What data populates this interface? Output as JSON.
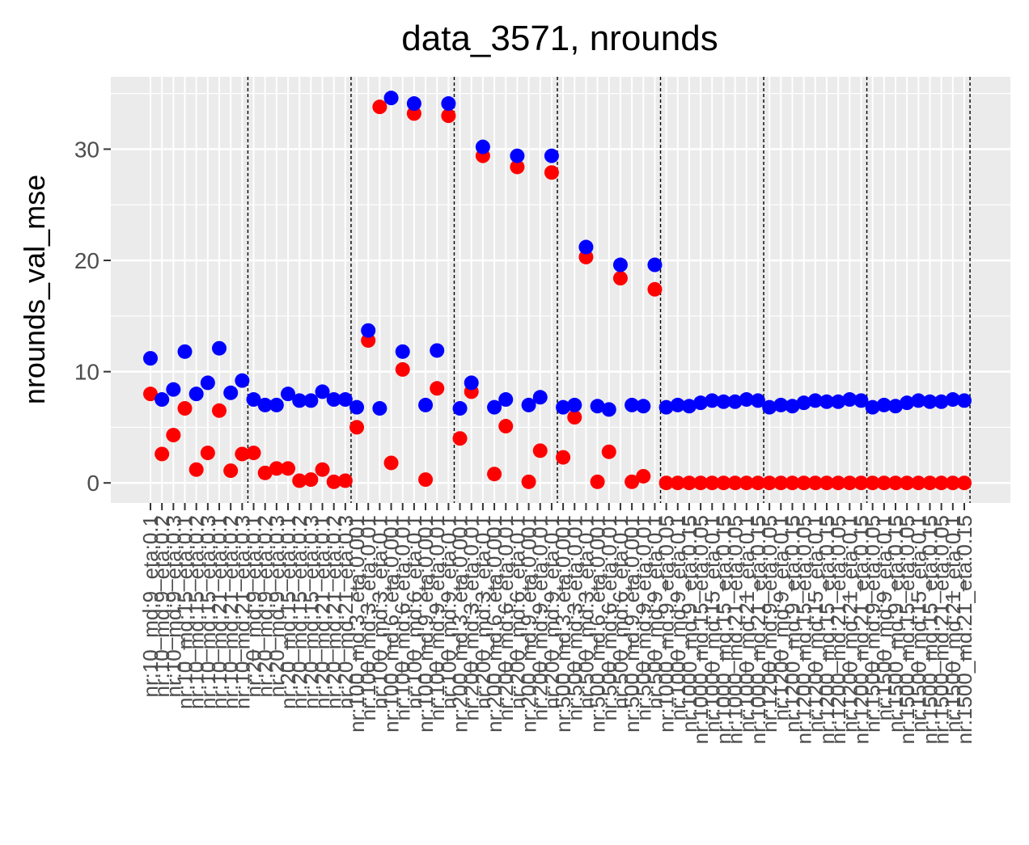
{
  "chart_data": {
    "type": "scatter",
    "title": "data_3571, nrounds",
    "xlabel": "",
    "ylabel": "nrounds_val_mse",
    "ylim": [
      -1.8,
      36.5
    ],
    "y_ticks": [
      0,
      10,
      20,
      30
    ],
    "grid": true,
    "legend": "none",
    "colors": {
      "panel_bg": "#ebebeb",
      "grid": "#ffffff",
      "blue_series": "#0000ff",
      "red_series": "#ff0000",
      "group_line": "#000000",
      "tick_text": "#4d4d4d"
    },
    "group_boundaries_after_index": [
      8,
      17,
      26,
      35,
      44,
      53,
      62,
      71,
      80
    ],
    "categories": [
      "nr:10_md:9_eta:0.1",
      "nr:10_md:9_eta:0.2",
      "nr:10_md:9_eta:0.3",
      "nr:10_md:15_eta:0.1",
      "nr:10_md:15_eta:0.2",
      "nr:10_md:15_eta:0.3",
      "nr:10_md:21_eta:0.1",
      "nr:10_md:21_eta:0.2",
      "nr:10_md:21_eta:0.3",
      "nr:20_md:9_eta:0.1",
      "nr:20_md:9_eta:0.2",
      "nr:20_md:9_eta:0.3",
      "nr:20_md:15_eta:0.1",
      "nr:20_md:15_eta:0.2",
      "nr:20_md:15_eta:0.3",
      "nr:20_md:21_eta:0.1",
      "nr:20_md:21_eta:0.2",
      "nr:20_md:21_eta:0.3",
      "nr:100_md:3_eta:0.001",
      "nr:100_md:3_eta:0.01",
      "nr:100_md:3_eta:0.1",
      "nr:100_md:6_eta:0.001",
      "nr:100_md:6_eta:0.01",
      "nr:100_md:6_eta:0.1",
      "nr:100_md:9_eta:0.001",
      "nr:100_md:9_eta:0.01",
      "nr:100_md:9_eta:0.1",
      "nr:200_md:3_eta:0.001",
      "nr:200_md:3_eta:0.01",
      "nr:200_md:3_eta:0.1",
      "nr:200_md:6_eta:0.001",
      "nr:200_md:6_eta:0.01",
      "nr:200_md:6_eta:0.1",
      "nr:200_md:9_eta:0.001",
      "nr:200_md:9_eta:0.01",
      "nr:200_md:9_eta:0.1",
      "nr:500_md:3_eta:0.001",
      "nr:500_md:3_eta:0.01",
      "nr:500_md:3_eta:0.1",
      "nr:500_md:6_eta:0.001",
      "nr:500_md:6_eta:0.01",
      "nr:500_md:6_eta:0.1",
      "nr:500_md:9_eta:0.001",
      "nr:500_md:9_eta:0.01",
      "nr:500_md:9_eta:0.1",
      "nr:1000_md:9_eta:0.05",
      "nr:1000_md:9_eta:0.1",
      "nr:1000_md:9_eta:0.15",
      "nr:1000_md:15_eta:0.05",
      "nr:1000_md:15_eta:0.1",
      "nr:1000_md:15_eta:0.15",
      "nr:1000_md:21_eta:0.05",
      "nr:1000_md:21_eta:0.1",
      "nr:1000_md:21_eta:0.15",
      "nr:1200_md:9_eta:0.05",
      "nr:1200_md:9_eta:0.1",
      "nr:1200_md:9_eta:0.15",
      "nr:1200_md:15_eta:0.05",
      "nr:1200_md:15_eta:0.1",
      "nr:1200_md:15_eta:0.15",
      "nr:1200_md:21_eta:0.05",
      "nr:1200_md:21_eta:0.1",
      "nr:1200_md:21_eta:0.15",
      "nr:1500_md:9_eta:0.05",
      "nr:1500_md:9_eta:0.1",
      "nr:1500_md:9_eta:0.15",
      "nr:1500_md:15_eta:0.05",
      "nr:1500_md:15_eta:0.1",
      "nr:1500_md:15_eta:0.15",
      "nr:1500_md:21_eta:0.05",
      "nr:1500_md:21_eta:0.1",
      "nr:1500_md:21_eta:0.15"
    ],
    "series": [
      {
        "color": "#0000ff",
        "values": [
          11.2,
          7.5,
          8.4,
          11.8,
          8.0,
          9.0,
          12.1,
          8.1,
          9.2,
          7.5,
          7.0,
          7.0,
          8.0,
          7.4,
          7.4,
          8.2,
          7.5,
          7.5,
          6.8,
          13.7,
          6.7,
          34.6,
          11.8,
          34.1,
          7.0,
          11.9,
          34.1,
          6.7,
          9.0,
          30.2,
          6.8,
          7.5,
          29.4,
          7.0,
          7.7,
          29.4,
          6.8,
          7.0,
          21.2,
          6.9,
          6.6,
          19.6,
          7.0,
          6.9,
          19.6,
          6.8,
          7.0,
          6.9,
          7.2,
          7.4,
          7.3,
          7.3,
          7.5,
          7.4,
          6.8,
          7.0,
          6.9,
          7.2,
          7.4,
          7.3,
          7.3,
          7.5,
          7.4,
          6.8,
          7.0,
          6.9,
          7.2,
          7.4,
          7.3,
          7.3,
          7.5,
          7.4
        ]
      },
      {
        "color": "#ff0000",
        "values": [
          8.0,
          2.6,
          4.3,
          6.7,
          1.2,
          2.7,
          6.5,
          1.1,
          2.6,
          2.7,
          0.9,
          1.3,
          1.3,
          0.2,
          0.3,
          1.2,
          0.1,
          0.2,
          5.0,
          12.8,
          33.8,
          1.8,
          10.2,
          33.2,
          0.3,
          8.5,
          33.0,
          4.0,
          8.2,
          29.4,
          0.8,
          5.1,
          28.4,
          0.1,
          2.9,
          27.9,
          2.3,
          5.9,
          20.3,
          0.1,
          2.8,
          18.4,
          0.1,
          0.6,
          17.4,
          0.0,
          0.0,
          0.0,
          0.0,
          0.0,
          0.0,
          0.0,
          0.0,
          0.0,
          0.0,
          0.0,
          0.0,
          0.0,
          0.0,
          0.0,
          0.0,
          0.0,
          0.0,
          0.0,
          0.0,
          0.0,
          0.0,
          0.0,
          0.0,
          0.0,
          0.0,
          0.0
        ]
      }
    ]
  }
}
